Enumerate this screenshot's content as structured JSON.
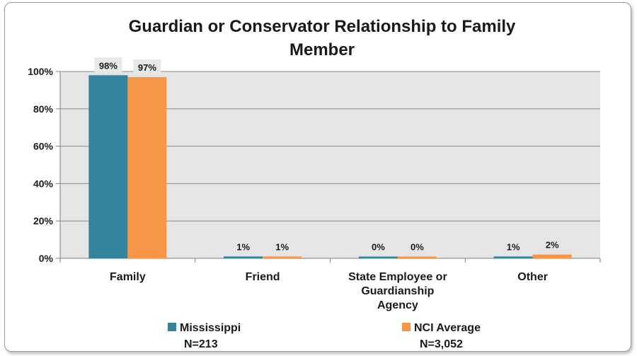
{
  "chart_data": {
    "type": "bar",
    "title": "Guardian or Conservator Relationship to Family Member",
    "title_lines": [
      "Guardian or Conservator Relationship to Family",
      "Member"
    ],
    "categories": [
      "Family",
      "Friend",
      "State Employee or Guardianship Agency",
      "Other"
    ],
    "category_lines": [
      [
        "Family"
      ],
      [
        "Friend"
      ],
      [
        "State Employee or",
        "Guardianship",
        "Agency"
      ],
      [
        "Other"
      ]
    ],
    "series": [
      {
        "name": "Mississippi",
        "n_label": "N=213",
        "color": "#31849b",
        "values": [
          98,
          1,
          0,
          1
        ],
        "labels": [
          "98%",
          "1%",
          "0%",
          "1%"
        ]
      },
      {
        "name": "NCI Average",
        "n_label": "N=3,052",
        "color": "#f79646",
        "values": [
          97,
          1,
          0,
          2
        ],
        "labels": [
          "97%",
          "1%",
          "0%",
          "2%"
        ]
      }
    ],
    "ylim": [
      0,
      100
    ],
    "yticks": [
      0,
      20,
      40,
      60,
      80,
      100
    ],
    "ytick_labels": [
      "0%",
      "20%",
      "40%",
      "60%",
      "80%",
      "100%"
    ],
    "xlabel": "",
    "ylabel": "",
    "grid": true,
    "plot_background": "#e5e5e5",
    "legend_position": "bottom"
  }
}
